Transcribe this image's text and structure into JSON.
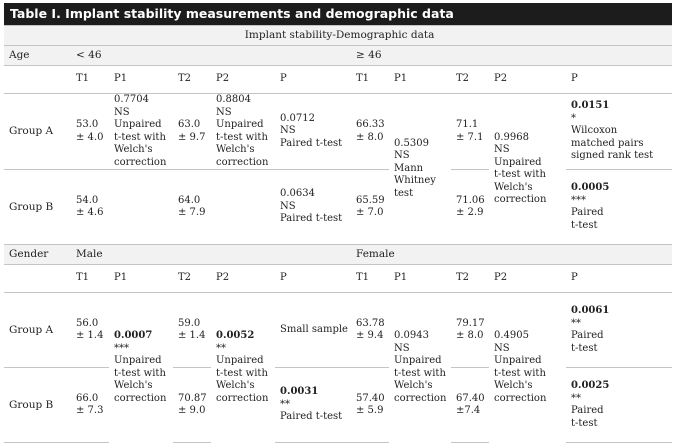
{
  "title": "Table I. Implant stability measurements and demographic data",
  "subtitle": "Implant stability-Demographic data",
  "age": {
    "label": "Age",
    "sub1": "< 46",
    "sub2": "≥ 46",
    "headers": [
      "T1",
      "P1",
      "T2",
      "P2",
      "P",
      "T1",
      "P1",
      "T2",
      "P2",
      "P"
    ],
    "groupA": {
      "label": "Group A",
      "t1a": "53.0",
      "t1b": "± 4.0",
      "p1a": "0.7704",
      "p1b": "NS",
      "p1c": "Unpaired",
      "p1d": "t-test with",
      "p1e": "Welch's",
      "p1f": "correction",
      "t2a": "63.0",
      "t2b": "± 9.7",
      "p2a": "0.8804",
      "p2b": "NS",
      "p2c": "Unpaired",
      "p2d": "t-test with",
      "p2e": "Welch's",
      "p2f": "correction",
      "pa": "0.0712",
      "pb": "NS",
      "pc": "Paired t-test",
      "t1ra": "66.33",
      "t1rb": "± 8.0",
      "t2ra": "71.1",
      "t2rb": "± 7.1",
      "p2ra": "0.9968",
      "p2rb": "NS",
      "p2rc": "Unpaired",
      "p2rd": "t-test with",
      "p2re": "Welch's",
      "p2rf": "correction",
      "pra": "0.0151",
      "prb": "*",
      "prc": "Wilcoxon",
      "prd": "matched pairs",
      "pre": "signed rank test"
    },
    "p1shared": {
      "a": "0.5309",
      "b": "NS",
      "c": "Mann",
      "d": "Whitney",
      "e": "test"
    },
    "groupB": {
      "label": "Group B",
      "t1a": "54.0",
      "t1b": "± 4.6",
      "t2a": "64.0",
      "t2b": "± 7.9",
      "pa": "0.0634",
      "pb": "NS",
      "pc": "Paired t-test",
      "t1ra": "65.59",
      "t1rb": "± 7.0",
      "t2ra": "71.06",
      "t2rb": "± 2.9",
      "pra": "0.0005",
      "prb": "***",
      "prc": "Paired",
      "prd": "t-test"
    }
  },
  "gender": {
    "label": "Gender",
    "sub1": "Male",
    "sub2": "Female",
    "headers": [
      "T1",
      "P1",
      "T2",
      "P2",
      "P",
      "T1",
      "P1",
      "T2",
      "P2",
      "P"
    ],
    "groupA": {
      "label": "Group A",
      "t1a": "56.0",
      "t1b": "± 1.4",
      "t2a": "59.0",
      "t2b": "± 1.4",
      "pa": "Small sample",
      "t1ra": "63.78",
      "t1rb": "± 9.4",
      "t2ra": "79.17",
      "t2rb": "± 8.0",
      "pra": "0.0061",
      "prb": "**",
      "prc": "Paired",
      "prd": "t-test"
    },
    "p1shared": {
      "a": "0.0007",
      "b": "***",
      "c": "Unpaired",
      "d": "t-test with",
      "e": "Welch's",
      "f": "correction"
    },
    "p2shared": {
      "a": "0.0052",
      "b": "**",
      "c": "Unpaired",
      "d": "t-test with",
      "e": "Welch's",
      "f": "correction"
    },
    "p1rshared": {
      "a": "0.0943",
      "b": "NS",
      "c": "Unpaired",
      "d": "t-test with",
      "e": "Welch's",
      "f": "correction"
    },
    "p2rshared": {
      "a": "0.4905",
      "b": "NS",
      "c": "Unpaired",
      "d": "t-test with",
      "e": "Welch's",
      "f": "correction"
    },
    "groupB": {
      "label": "Group B",
      "t1a": "66.0",
      "t1b": "± 7.3",
      "t2a": "70.87",
      "t2b": "± 9.0",
      "pa": "0.0031",
      "pb": "**",
      "pc": "Paired t-test",
      "t1ra": "57.40",
      "t1rb": "± 5.9",
      "t2ra": "67.40",
      "t2rb": "±7.4",
      "pra": "0.0025",
      "prb": "**",
      "prc": "Paired",
      "prd": "t-test"
    }
  }
}
